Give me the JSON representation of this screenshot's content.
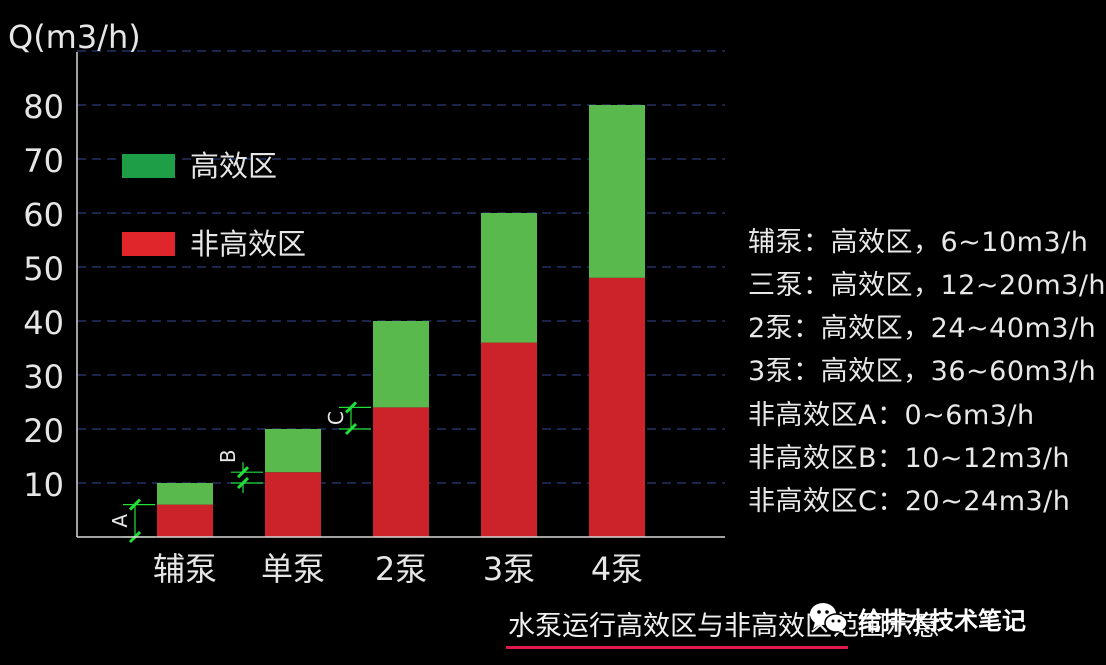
{
  "chart_data": {
    "type": "bar",
    "stacked": true,
    "ylabel": "Q(m3/h)",
    "ylim": [
      0,
      90
    ],
    "yticks": [
      10,
      20,
      30,
      40,
      50,
      60,
      70,
      80
    ],
    "grid": true,
    "categories": [
      "辅泵",
      "单泵",
      "2泵",
      "3泵",
      "4泵"
    ],
    "series": [
      {
        "name": "非高效区",
        "color": "#cc2229",
        "values": [
          6,
          12,
          24,
          36,
          48
        ]
      },
      {
        "name": "高效区",
        "color": "#5ab94c",
        "values": [
          4,
          8,
          16,
          24,
          32
        ]
      }
    ],
    "legend": {
      "placement": "top-left",
      "items": [
        {
          "label": "高效区",
          "color": "#1e9e46"
        },
        {
          "label": "非高效区",
          "color": "#e0262b"
        }
      ]
    },
    "annotations": [
      {
        "label": "A",
        "category": "辅泵",
        "range": [
          0,
          6
        ]
      },
      {
        "label": "B",
        "category": "单泵",
        "range": [
          10,
          12
        ]
      },
      {
        "label": "C",
        "category": "2泵",
        "range": [
          20,
          24
        ]
      }
    ]
  },
  "notes": [
    "辅泵：高效区，6~10m3/h",
    "三泵：高效区，12~20m3/h",
    "2泵：高效区，24~40m3/h",
    "3泵：高效区，36~60m3/h",
    "非高效区A：0~6m3/h",
    "非高效区B：10~12m3/h",
    "非高效区C：20~24m3/h"
  ],
  "caption": "水泵运行高效区与非高效区范围示意",
  "watermark": {
    "icon": "wechat-icon",
    "text": "给排水技术笔记"
  },
  "colors": {
    "annotation": "#22e03a",
    "grid": "#2f3a7a",
    "axis": "#d8d8d8",
    "underline": "#e0174a"
  }
}
